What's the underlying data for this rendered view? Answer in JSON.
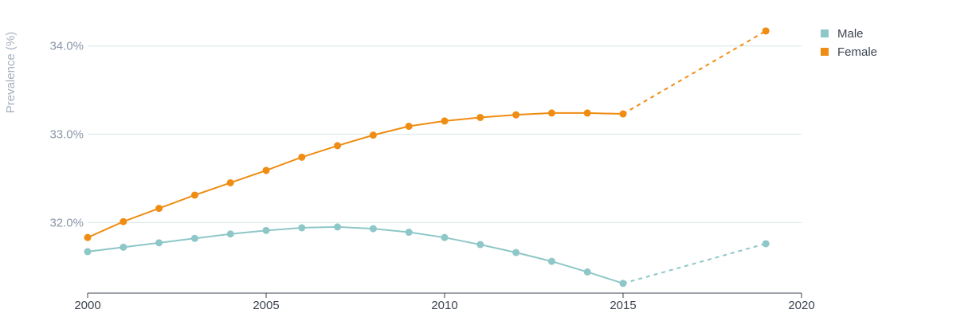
{
  "chart_data": {
    "type": "line",
    "ylabel": "Prevalence (%)",
    "xlim": [
      2000,
      2020
    ],
    "ylim": [
      31.2,
      34.25
    ],
    "x_ticks": [
      "2000",
      "2005",
      "2010",
      "2015",
      "2020"
    ],
    "y_ticks": [
      {
        "value": 32.0,
        "label": "32.0%"
      },
      {
        "value": 33.0,
        "label": "33.0%"
      },
      {
        "value": 34.0,
        "label": "34.0%"
      }
    ],
    "grid": true,
    "legend_position": "top-right",
    "series": [
      {
        "name": "Male",
        "color": "#8ec7c7",
        "x": [
          2000,
          2001,
          2002,
          2003,
          2004,
          2005,
          2006,
          2007,
          2008,
          2009,
          2010,
          2011,
          2012,
          2013,
          2014,
          2015
        ],
        "values": [
          31.67,
          31.72,
          31.77,
          31.82,
          31.87,
          31.91,
          31.94,
          31.95,
          31.93,
          31.89,
          31.83,
          31.75,
          31.66,
          31.56,
          31.44,
          31.31
        ],
        "projection_x": [
          2015,
          2019
        ],
        "projection_values": [
          31.31,
          31.76
        ]
      },
      {
        "name": "Female",
        "color": "#ef8c12",
        "x": [
          2000,
          2001,
          2002,
          2003,
          2004,
          2005,
          2006,
          2007,
          2008,
          2009,
          2010,
          2011,
          2012,
          2013,
          2014,
          2015
        ],
        "values": [
          31.83,
          32.01,
          32.16,
          32.31,
          32.45,
          32.59,
          32.74,
          32.87,
          32.99,
          33.09,
          33.15,
          33.19,
          33.22,
          33.24,
          33.24,
          33.23
        ],
        "projection_x": [
          2015,
          2019
        ],
        "projection_values": [
          33.23,
          34.17
        ]
      }
    ]
  }
}
